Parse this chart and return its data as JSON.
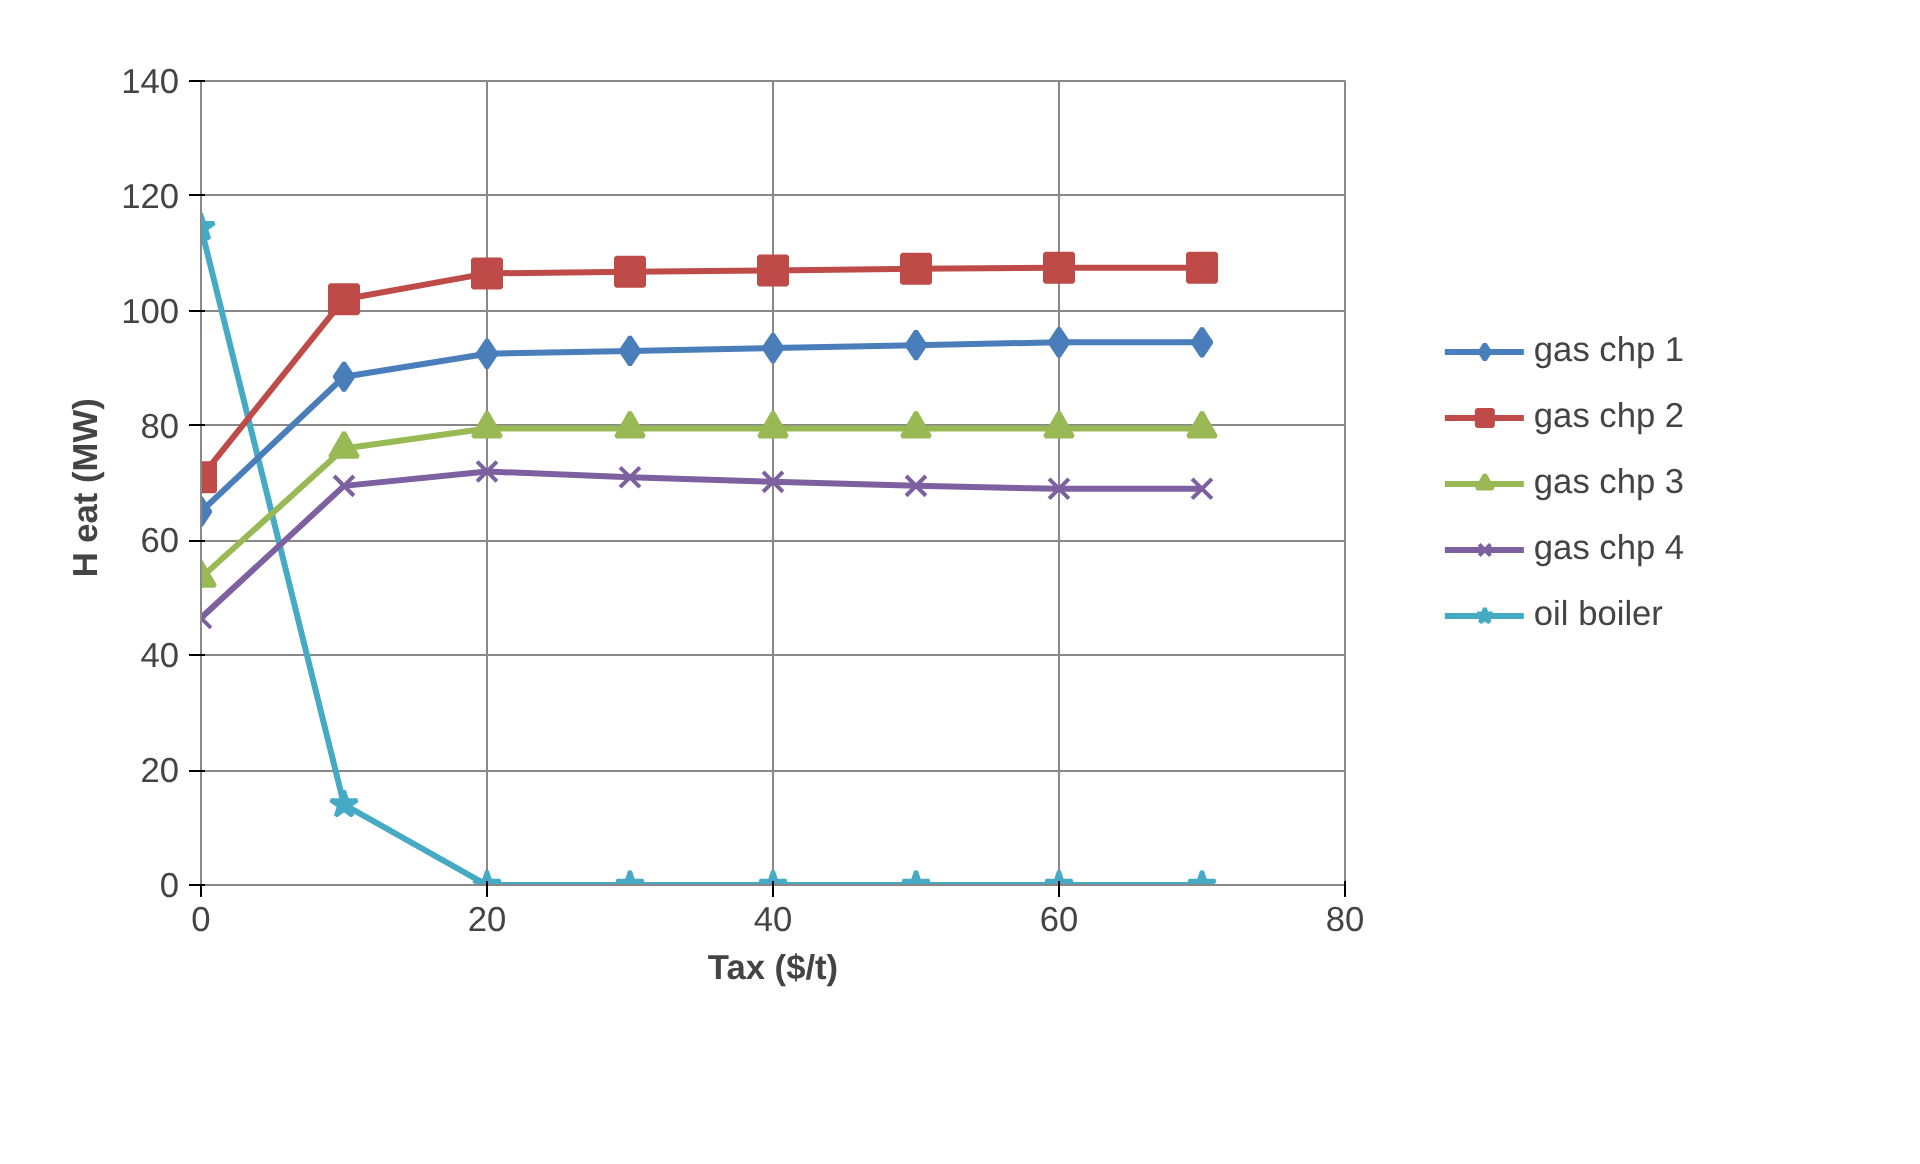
{
  "chart_data": {
    "type": "line",
    "xlabel": "Tax ($/t)",
    "ylabel": "H eat  (MW)",
    "x": [
      0,
      10,
      20,
      30,
      40,
      50,
      60,
      70
    ],
    "xlim": [
      0,
      80
    ],
    "xticks": [
      0,
      20,
      40,
      60,
      80
    ],
    "ylim": [
      0,
      140
    ],
    "yticks": [
      0,
      20,
      40,
      60,
      80,
      100,
      120,
      140
    ],
    "grid": true,
    "legend": "right",
    "line_style": "solid",
    "series": [
      {
        "name": "gas chp 1",
        "color": "#4a7ebb",
        "marker": "diamond",
        "values": [
          65,
          88.5,
          92.5,
          93,
          93.5,
          94,
          94.5,
          94.5
        ]
      },
      {
        "name": "gas chp 2",
        "color": "#be4b48",
        "marker": "square",
        "values": [
          71,
          102,
          106.5,
          106.8,
          107,
          107.3,
          107.5,
          107.5
        ]
      },
      {
        "name": "gas chp 3",
        "color": "#98b954",
        "marker": "triangle",
        "values": [
          53.5,
          76,
          79.5,
          79.5,
          79.5,
          79.5,
          79.5,
          79.5
        ]
      },
      {
        "name": "gas chp 4",
        "color": "#7d60a0",
        "marker": "cross",
        "values": [
          46.5,
          69.5,
          72,
          71,
          70.2,
          69.5,
          69,
          69
        ]
      },
      {
        "name": "oil boiler",
        "color": "#46aac5",
        "marker": "star",
        "values": [
          114.5,
          14,
          0,
          0,
          0,
          0,
          0,
          0
        ]
      }
    ]
  }
}
